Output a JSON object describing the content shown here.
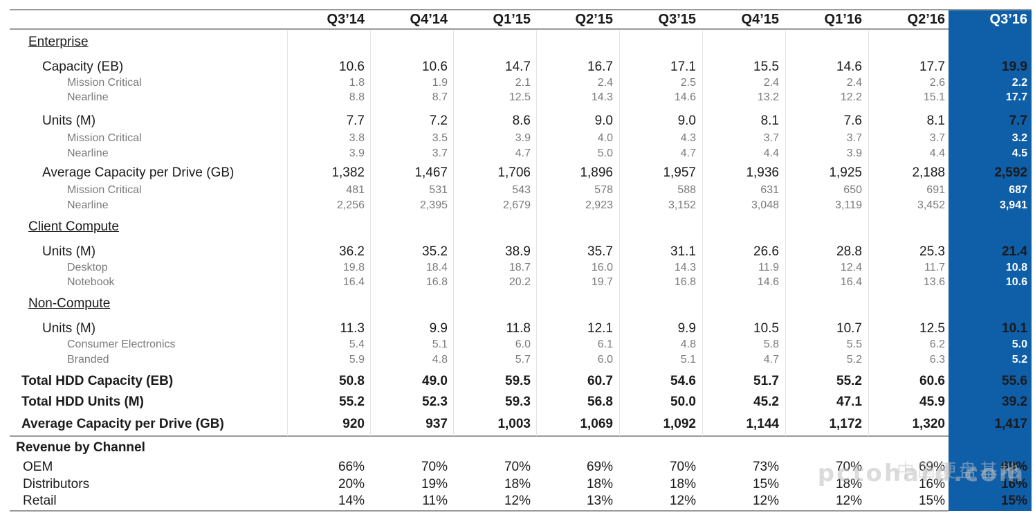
{
  "quarters": [
    "Q3’14",
    "Q4’14",
    "Q1’15",
    "Q2’15",
    "Q3’15",
    "Q4’15",
    "Q1’16",
    "Q2’16",
    "Q3’16"
  ],
  "highlight_color": "#0f5ea8",
  "rows": [
    {
      "kind": "section",
      "label": "Enterprise",
      "values": []
    },
    {
      "kind": "main",
      "label": "Capacity (EB)",
      "values": [
        "10.6",
        "10.6",
        "14.7",
        "16.7",
        "17.1",
        "15.5",
        "14.6",
        "17.7",
        "19.9"
      ]
    },
    {
      "kind": "sub",
      "label": "Mission Critical",
      "values": [
        "1.8",
        "1.9",
        "2.1",
        "2.4",
        "2.5",
        "2.4",
        "2.4",
        "2.6",
        "2.2"
      ]
    },
    {
      "kind": "sub",
      "label": "Nearline",
      "values": [
        "8.8",
        "8.7",
        "12.5",
        "14.3",
        "14.6",
        "13.2",
        "12.2",
        "15.1",
        "17.7"
      ]
    },
    {
      "kind": "main",
      "label": "Units (M)",
      "values": [
        "7.7",
        "7.2",
        "8.6",
        "9.0",
        "9.0",
        "8.1",
        "7.6",
        "8.1",
        "7.7"
      ]
    },
    {
      "kind": "sub",
      "label": "Mission Critical",
      "values": [
        "3.8",
        "3.5",
        "3.9",
        "4.0",
        "4.3",
        "3.7",
        "3.7",
        "3.7",
        "3.2"
      ]
    },
    {
      "kind": "sub",
      "label": "Nearline",
      "values": [
        "3.9",
        "3.7",
        "4.7",
        "5.0",
        "4.7",
        "4.4",
        "3.9",
        "4.4",
        "4.5"
      ]
    },
    {
      "kind": "main",
      "label": "Average Capacity per Drive (GB)",
      "values": [
        "1,382",
        "1,467",
        "1,706",
        "1,896",
        "1,957",
        "1,936",
        "1,925",
        "2,188",
        "2,592"
      ]
    },
    {
      "kind": "sub",
      "label": "Mission Critical",
      "values": [
        "481",
        "531",
        "543",
        "578",
        "588",
        "631",
        "650",
        "691",
        "687"
      ]
    },
    {
      "kind": "sub",
      "label": "Nearline",
      "values": [
        "2,256",
        "2,395",
        "2,679",
        "2,923",
        "3,152",
        "3,048",
        "3,119",
        "3,452",
        "3,941"
      ]
    },
    {
      "kind": "section",
      "label": "Client Compute",
      "values": []
    },
    {
      "kind": "main",
      "label": "Units (M)",
      "values": [
        "36.2",
        "35.2",
        "38.9",
        "35.7",
        "31.1",
        "26.6",
        "28.8",
        "25.3",
        "21.4"
      ]
    },
    {
      "kind": "sub",
      "label": "Desktop",
      "values": [
        "19.8",
        "18.4",
        "18.7",
        "16.0",
        "14.3",
        "11.9",
        "12.4",
        "11.7",
        "10.8"
      ]
    },
    {
      "kind": "sub",
      "label": "Notebook",
      "values": [
        "16.4",
        "16.8",
        "20.2",
        "19.7",
        "16.8",
        "14.6",
        "16.4",
        "13.6",
        "10.6"
      ]
    },
    {
      "kind": "section",
      "label": "Non-Compute",
      "values": []
    },
    {
      "kind": "main",
      "label": "Units (M)",
      "values": [
        "11.3",
        "9.9",
        "11.8",
        "12.1",
        "9.9",
        "10.5",
        "10.7",
        "12.5",
        "10.1"
      ]
    },
    {
      "kind": "sub",
      "label": "Consumer Electronics",
      "values": [
        "5.4",
        "5.1",
        "6.0",
        "6.1",
        "4.8",
        "5.8",
        "5.5",
        "6.2",
        "5.0"
      ]
    },
    {
      "kind": "sub",
      "label": "Branded",
      "values": [
        "5.9",
        "4.8",
        "5.7",
        "6.0",
        "5.1",
        "4.7",
        "5.2",
        "6.3",
        "5.2"
      ]
    },
    {
      "kind": "total",
      "label": "Total HDD Capacity (EB)",
      "values": [
        "50.8",
        "49.0",
        "59.5",
        "60.7",
        "54.6",
        "51.7",
        "55.2",
        "60.6",
        "55.6"
      ]
    },
    {
      "kind": "total",
      "label": "Total HDD Units (M)",
      "values": [
        "55.2",
        "52.3",
        "59.3",
        "56.8",
        "50.0",
        "45.2",
        "47.1",
        "45.9",
        "39.2"
      ]
    },
    {
      "kind": "total",
      "label": "Average Capacity per Drive (GB)",
      "values": [
        "920",
        "937",
        "1,003",
        "1,069",
        "1,092",
        "1,144",
        "1,172",
        "1,320",
        "1,417"
      ]
    },
    {
      "kind": "revh",
      "label": "Revenue by Channel",
      "values": []
    },
    {
      "kind": "rev",
      "label": "OEM",
      "values": [
        "66%",
        "70%",
        "70%",
        "69%",
        "70%",
        "73%",
        "70%",
        "69%",
        "69%"
      ]
    },
    {
      "kind": "rev",
      "label": "Distributors",
      "values": [
        "20%",
        "19%",
        "18%",
        "18%",
        "18%",
        "15%",
        "18%",
        "16%",
        "16%"
      ]
    },
    {
      "kind": "rev",
      "label": "Retail",
      "values": [
        "14%",
        "11%",
        "12%",
        "13%",
        "12%",
        "12%",
        "12%",
        "15%",
        "15%"
      ]
    }
  ],
  "watermark": "pctohard.com",
  "watermark_cn": "中国硬盘基地"
}
